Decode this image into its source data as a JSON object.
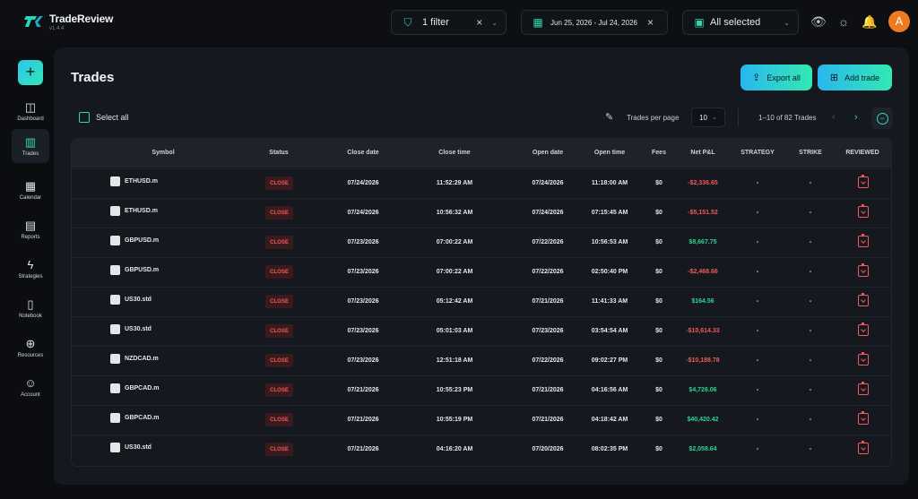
{
  "app": {
    "name": "TradeReview",
    "version": "v1.4.4"
  },
  "topbar": {
    "filter_label": "1 filter",
    "date_range": "Jun 25, 2026 - Jul 24, 2026",
    "accounts_label": "All selected",
    "avatar_initial": "A"
  },
  "sidebar": {
    "items": [
      {
        "label": "Dashboard",
        "icon": "dashboard-icon"
      },
      {
        "label": "Trades",
        "icon": "trades-icon"
      },
      {
        "label": "Calendar",
        "icon": "calendar-icon"
      },
      {
        "label": "Reports",
        "icon": "reports-icon"
      },
      {
        "label": "Strategies",
        "icon": "strategies-icon"
      },
      {
        "label": "Notebook",
        "icon": "notebook-icon"
      },
      {
        "label": "Resources",
        "icon": "resources-icon"
      },
      {
        "label": "Account",
        "icon": "account-icon"
      }
    ],
    "active": "Trades"
  },
  "page": {
    "title": "Trades",
    "export_label": "Export all",
    "add_label": "Add trade",
    "select_all_label": "Select all",
    "per_page_label": "Trades per page",
    "per_page_value": "10",
    "range_label": "1–10 of 82 Trades"
  },
  "table": {
    "columns": [
      "Symbol",
      "Status",
      "Close date",
      "Close time",
      "Open date",
      "Open time",
      "Fees",
      "Net P&L",
      "STRATEGY",
      "STRIKE",
      "REVIEWED"
    ],
    "rows": [
      {
        "symbol": "ETHUSD.m",
        "status": "CLOSE",
        "close_date": "07/24/2026",
        "close_time": "11:52:29 AM",
        "open_date": "07/24/2026",
        "open_time": "11:18:00 AM",
        "fees": "$0",
        "pnl": "-$2,336.65",
        "strategy": "-",
        "strike": "-"
      },
      {
        "symbol": "ETHUSD.m",
        "status": "CLOSE",
        "close_date": "07/24/2026",
        "close_time": "10:56:32 AM",
        "open_date": "07/24/2026",
        "open_time": "07:15:45 AM",
        "fees": "$0",
        "pnl": "-$5,151.52",
        "strategy": "-",
        "strike": "-"
      },
      {
        "symbol": "GBPUSD.m",
        "status": "CLOSE",
        "close_date": "07/23/2026",
        "close_time": "07:00:22 AM",
        "open_date": "07/22/2026",
        "open_time": "10:56:53 AM",
        "fees": "$0",
        "pnl": "$8,667.75",
        "strategy": "-",
        "strike": "-"
      },
      {
        "symbol": "GBPUSD.m",
        "status": "CLOSE",
        "close_date": "07/23/2026",
        "close_time": "07:00:22 AM",
        "open_date": "07/22/2026",
        "open_time": "02:50:40 PM",
        "fees": "$0",
        "pnl": "-$2,468.66",
        "strategy": "-",
        "strike": "-"
      },
      {
        "symbol": "US30.std",
        "status": "CLOSE",
        "close_date": "07/23/2026",
        "close_time": "05:12:42 AM",
        "open_date": "07/21/2026",
        "open_time": "11:41:33 AM",
        "fees": "$0",
        "pnl": "$164.56",
        "strategy": "-",
        "strike": "-"
      },
      {
        "symbol": "US30.std",
        "status": "CLOSE",
        "close_date": "07/23/2026",
        "close_time": "05:01:03 AM",
        "open_date": "07/23/2026",
        "open_time": "03:54:54 AM",
        "fees": "$0",
        "pnl": "-$10,614.33",
        "strategy": "-",
        "strike": "-"
      },
      {
        "symbol": "NZDCAD.m",
        "status": "CLOSE",
        "close_date": "07/23/2026",
        "close_time": "12:51:18 AM",
        "open_date": "07/22/2026",
        "open_time": "09:02:27 PM",
        "fees": "$0",
        "pnl": "-$10,188.78",
        "strategy": "-",
        "strike": "-"
      },
      {
        "symbol": "GBPCAD.m",
        "status": "CLOSE",
        "close_date": "07/21/2026",
        "close_time": "10:55:23 PM",
        "open_date": "07/21/2026",
        "open_time": "04:16:56 AM",
        "fees": "$0",
        "pnl": "$4,726.06",
        "strategy": "-",
        "strike": "-"
      },
      {
        "symbol": "GBPCAD.m",
        "status": "CLOSE",
        "close_date": "07/21/2026",
        "close_time": "10:55:19 PM",
        "open_date": "07/21/2026",
        "open_time": "04:18:42 AM",
        "fees": "$0",
        "pnl": "$40,420.42",
        "strategy": "-",
        "strike": "-"
      },
      {
        "symbol": "US30.std",
        "status": "CLOSE",
        "close_date": "07/21/2026",
        "close_time": "04:16:20 AM",
        "open_date": "07/20/2026",
        "open_time": "08:02:35 PM",
        "fees": "$0",
        "pnl": "$2,058.64",
        "strategy": "-",
        "strike": "-"
      }
    ]
  },
  "colors": {
    "accent": "#30d7b0",
    "negative": "#ef5a5a",
    "positive": "#2fd497"
  }
}
